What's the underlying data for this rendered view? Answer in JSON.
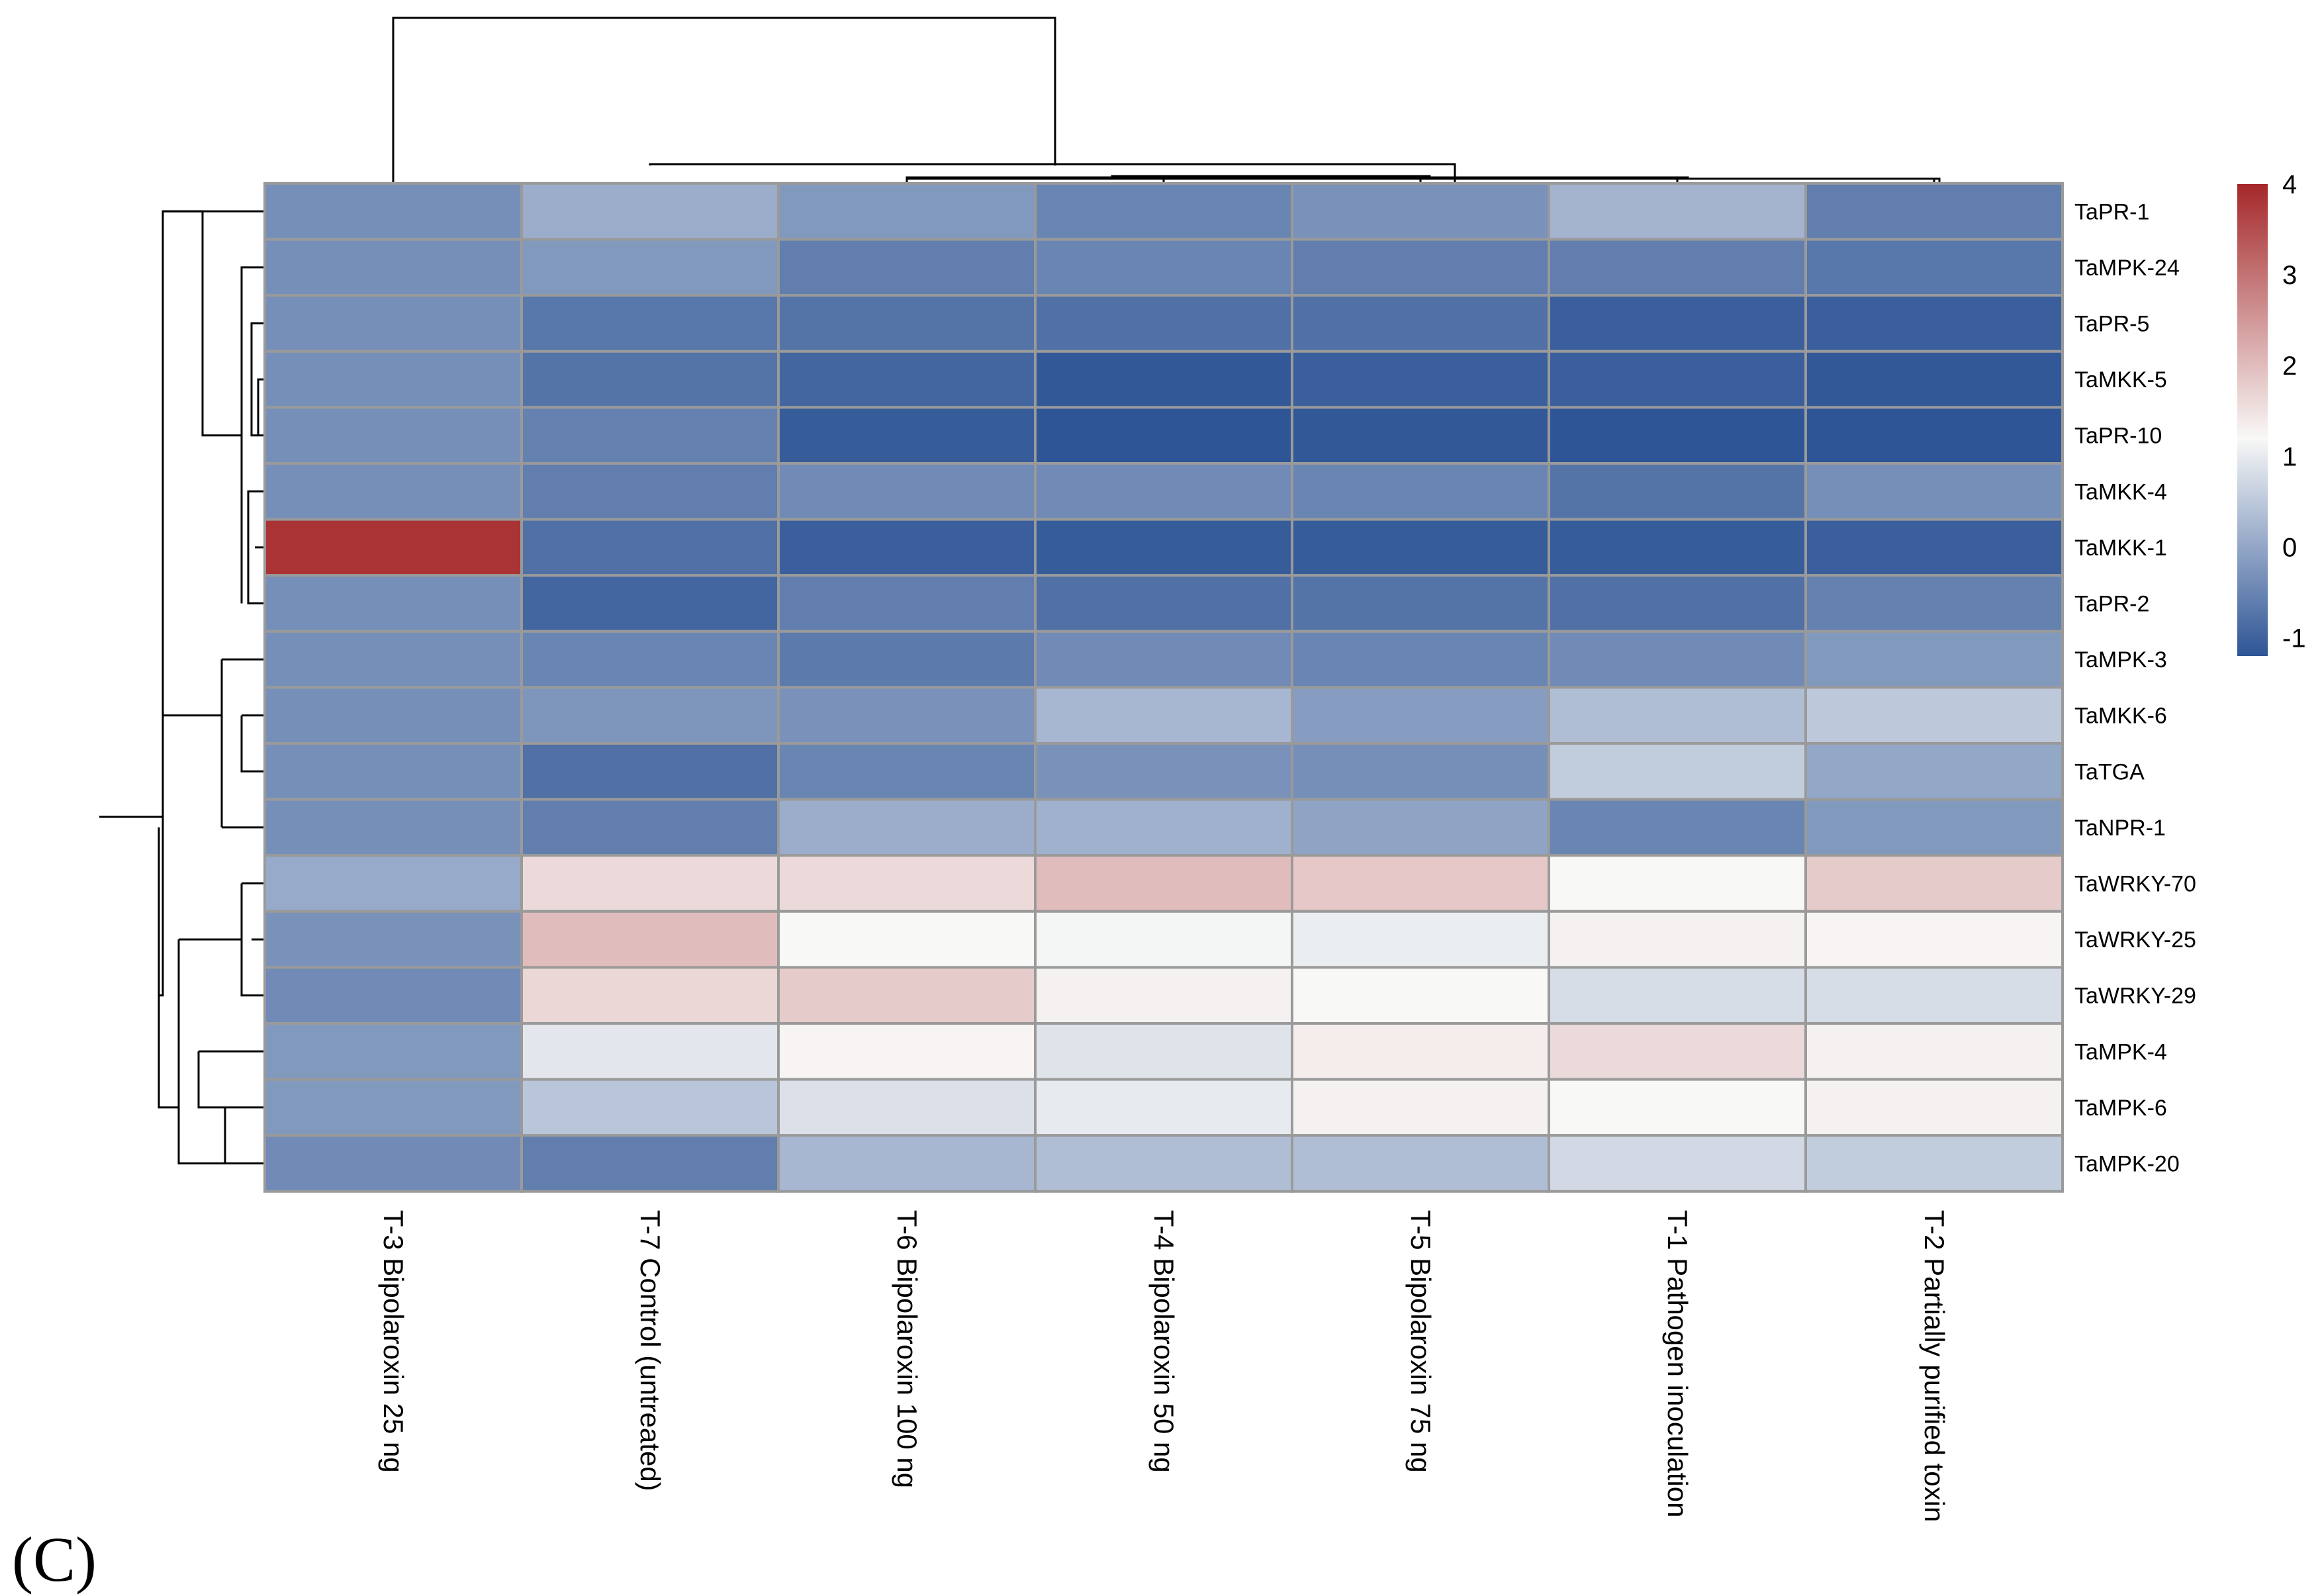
{
  "panel_label": "(C)",
  "chart_data": {
    "type": "heatmap",
    "columns": [
      "T-3 Bipolaroxin 25 ng",
      "T-7 Control (untreated)",
      "T-6 Bipolaroxin 100 ng",
      "T-4 Bipolaroxin 50 ng",
      "T-5 Bipolaroxin 75 ng",
      "T-1 Pathogen inoculation",
      "T-2 Partially purified toxin"
    ],
    "rows": [
      "TaPR-1",
      "TaMPK-24",
      "TaPR-5",
      "TaMKK-5",
      "TaPR-10",
      "TaMKK-4",
      "TaMKK-1",
      "TaPR-2",
      "TaMPK-3",
      "TaMKK-6",
      "TaTGA",
      "TaNPR-1",
      "TaWRKY-70",
      "TaWRKY-25",
      "TaWRKY-29",
      "TaMPK-4",
      "TaMPK-6",
      "TaMPK-20"
    ],
    "values": [
      [
        -0.35,
        0.1,
        -0.2,
        -0.5,
        -0.3,
        0.2,
        -0.6
      ],
      [
        -0.35,
        -0.2,
        -0.6,
        -0.5,
        -0.6,
        -0.6,
        -0.7
      ],
      [
        -0.35,
        -0.7,
        -0.75,
        -0.8,
        -0.8,
        -1.05,
        -1.05
      ],
      [
        -0.35,
        -0.75,
        -0.95,
        -1.15,
        -1.05,
        -1.05,
        -1.15
      ],
      [
        -0.35,
        -0.55,
        -1.1,
        -1.2,
        -1.15,
        -1.2,
        -1.2
      ],
      [
        -0.35,
        -0.6,
        -0.4,
        -0.4,
        -0.5,
        -0.75,
        -0.35
      ],
      [
        3.85,
        -0.8,
        -1.05,
        -1.1,
        -1.1,
        -1.1,
        -1.05
      ],
      [
        -0.35,
        -0.95,
        -0.6,
        -0.8,
        -0.75,
        -0.8,
        -0.55
      ],
      [
        -0.35,
        -0.5,
        -0.65,
        -0.4,
        -0.5,
        -0.4,
        -0.2
      ],
      [
        -0.35,
        -0.25,
        -0.3,
        0.25,
        -0.15,
        0.35,
        0.5
      ],
      [
        -0.35,
        -0.8,
        -0.5,
        -0.3,
        -0.35,
        0.55,
        0.0
      ],
      [
        -0.35,
        -0.6,
        0.1,
        0.15,
        -0.05,
        -0.5,
        -0.2
      ],
      [
        0.05,
        1.6,
        1.6,
        2.0,
        1.85,
        1.2,
        1.8
      ],
      [
        -0.3,
        2.0,
        1.2,
        1.15,
        1.05,
        1.3,
        1.25
      ],
      [
        -0.4,
        1.65,
        1.8,
        1.3,
        1.2,
        0.8,
        0.8
      ],
      [
        -0.2,
        0.95,
        1.25,
        0.9,
        1.35,
        1.6,
        1.3
      ],
      [
        -0.2,
        0.45,
        0.85,
        1.0,
        1.3,
        1.2,
        1.3
      ],
      [
        -0.4,
        -0.6,
        0.25,
        0.35,
        0.35,
        0.75,
        0.55
      ]
    ],
    "colorbar": {
      "ticks": [
        "4",
        "3",
        "2",
        "1",
        "0",
        "-1"
      ],
      "min": -1.2,
      "max": 4.0,
      "low_color": "#2e5596",
      "mid_color": "#f8f8f7",
      "high_color": "#a5282a",
      "mid_value": 1.2
    },
    "row_dendrogram": true,
    "column_dendrogram": true,
    "grid_color": "#9a9a9a"
  }
}
